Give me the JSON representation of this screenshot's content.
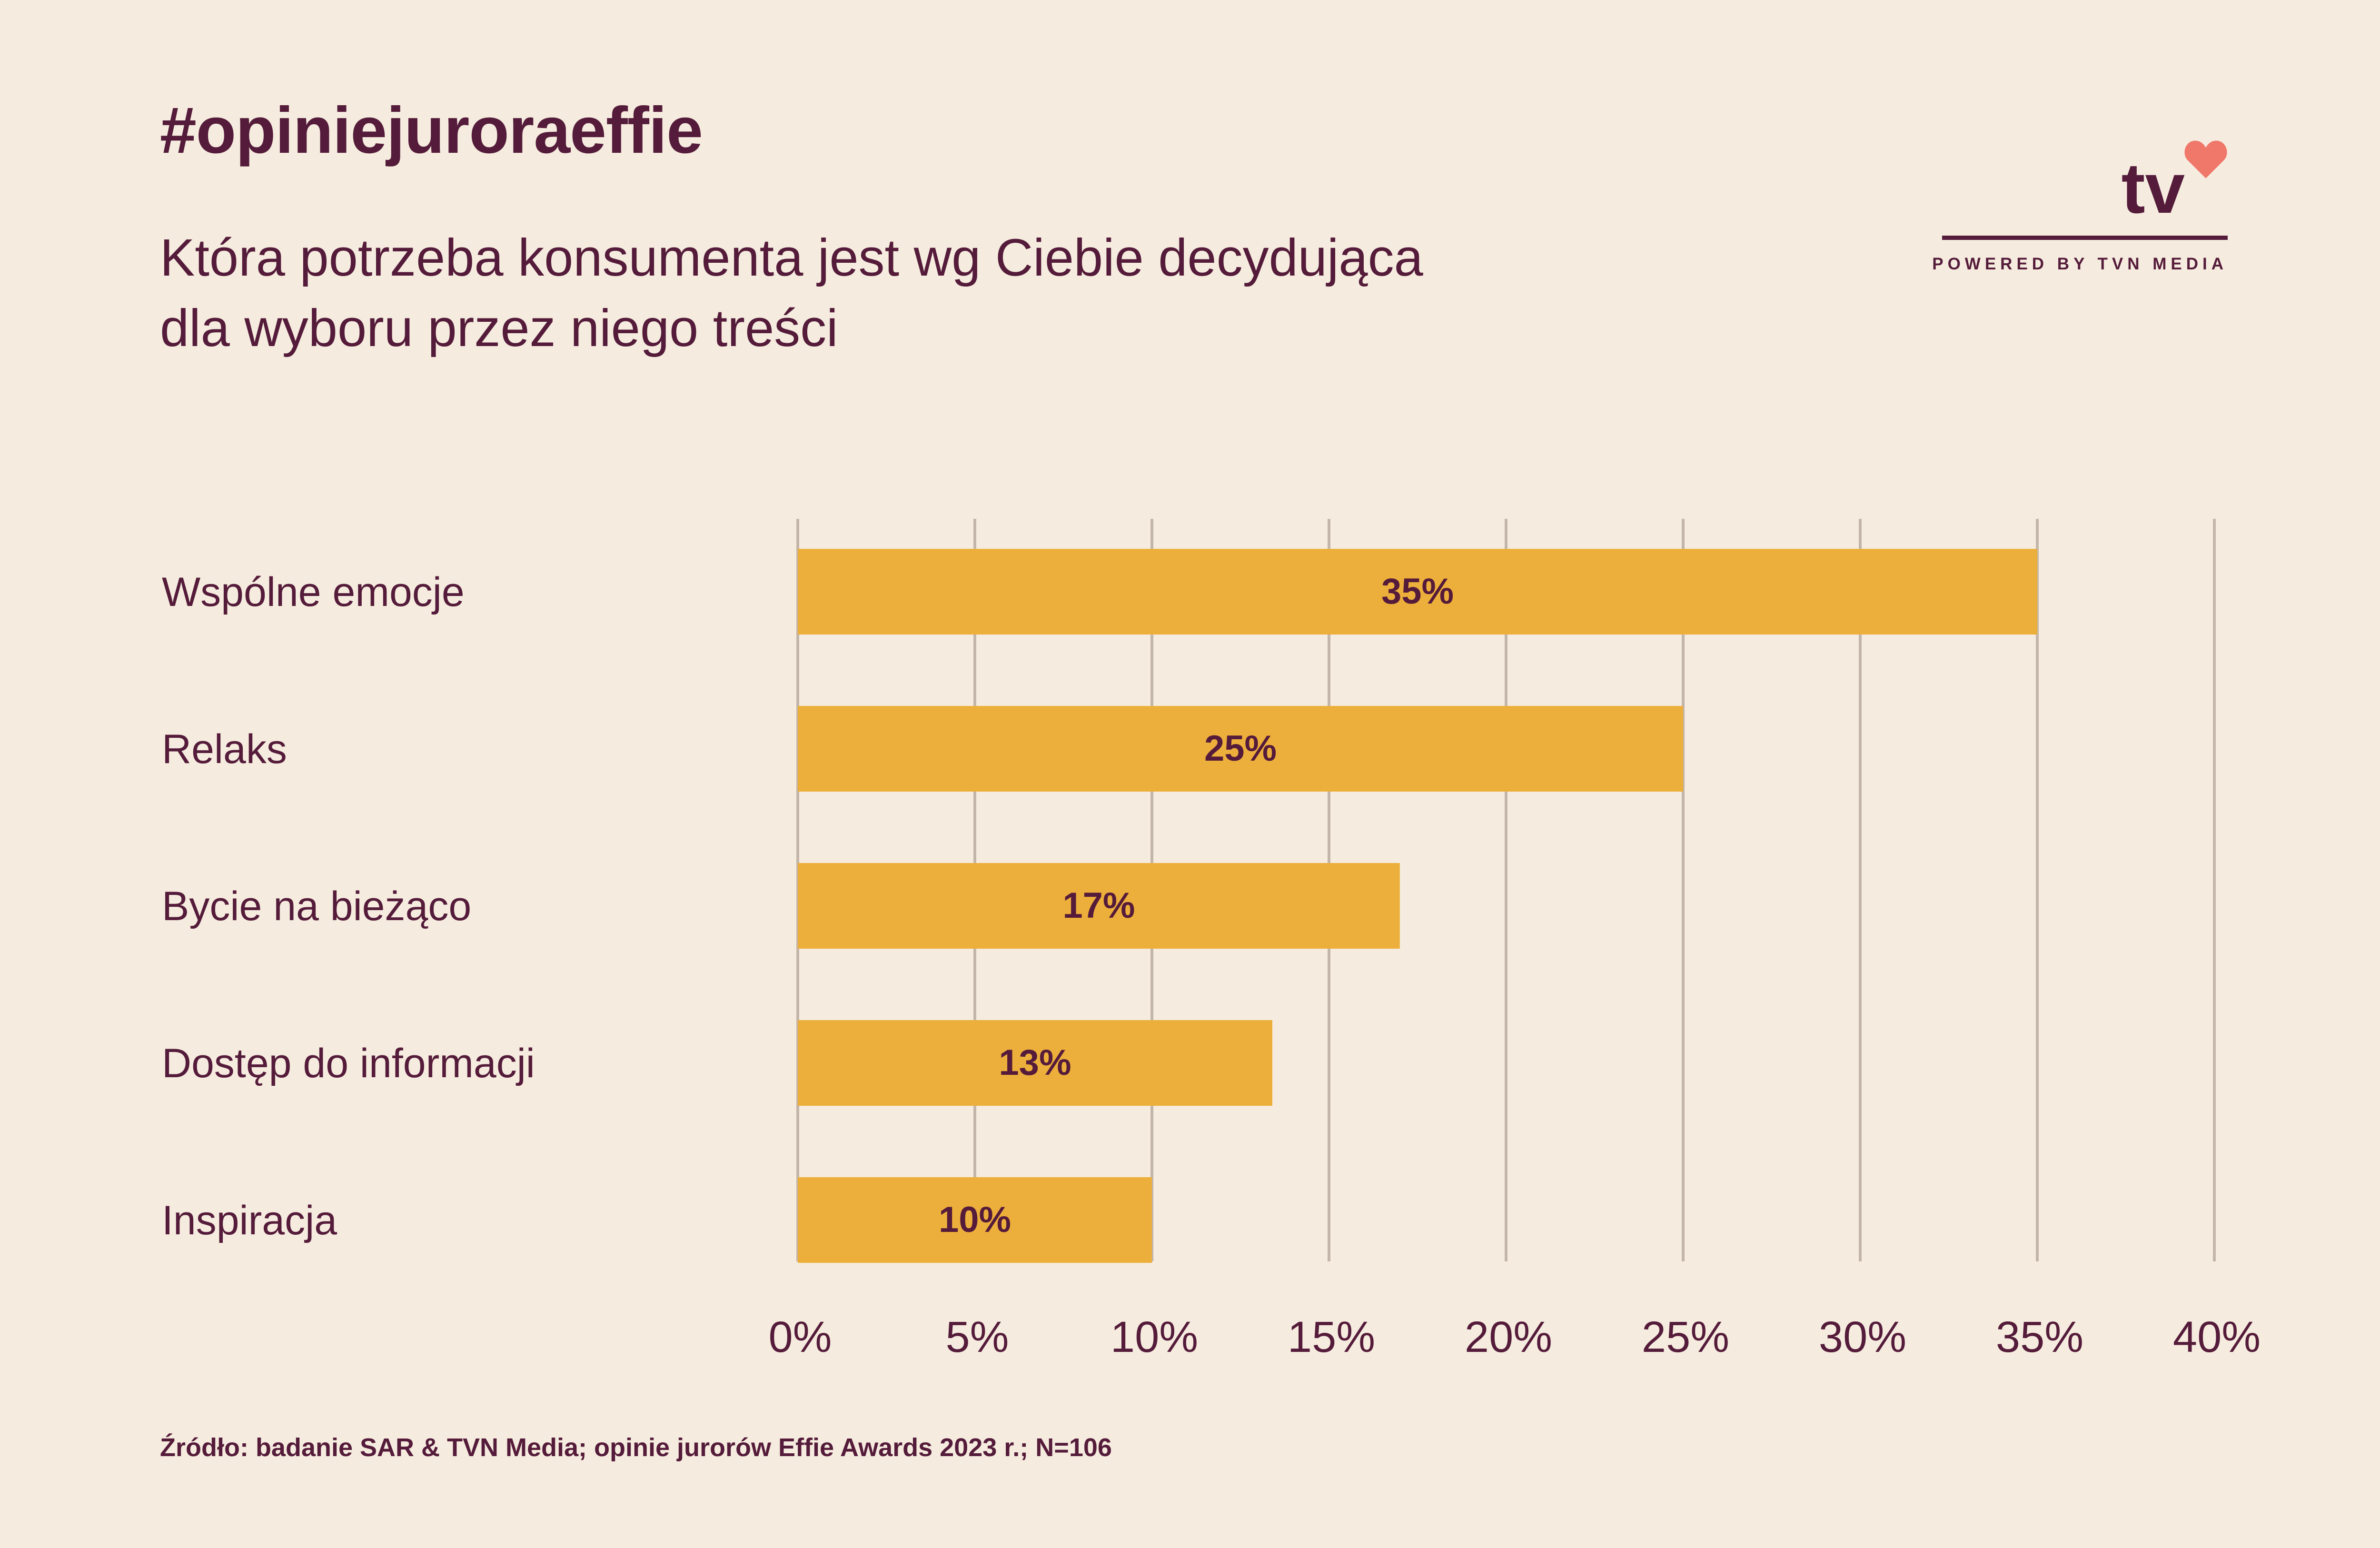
{
  "header": {
    "hashtag": "#opiniejuroraeffie",
    "subtitle_line1": "Która potrzeba konsumenta jest wg Ciebie decydująca",
    "subtitle_line2": "dla wyboru przez niego treści"
  },
  "logo": {
    "mark": "tv",
    "icon": "heart-icon",
    "caption": "POWERED BY TVN MEDIA"
  },
  "colors": {
    "background": "#f5ecdf",
    "text": "#551b3a",
    "bar": "#edaf3b",
    "grid": "#c3b5a9",
    "heart": "#f0786a"
  },
  "chart_data": {
    "type": "bar",
    "orientation": "horizontal",
    "categories": [
      "Wspólne emocje",
      "Relaks",
      "Bycie na bieżąco",
      "Dostęp do informacji",
      "Inspiracja"
    ],
    "values": [
      35,
      25,
      17,
      13.4,
      10
    ],
    "value_labels": [
      "35%",
      "25%",
      "17%",
      "13%",
      "10%"
    ],
    "xlim": [
      0,
      40
    ],
    "xticks": [
      0,
      5,
      10,
      15,
      20,
      25,
      30,
      35,
      40
    ],
    "xtick_labels": [
      "0%",
      "5%",
      "10%",
      "15%",
      "20%",
      "25%",
      "30%",
      "35%",
      "40%"
    ],
    "grid": true
  },
  "footer": {
    "source": "Źródło: badanie SAR & TVN Media; opinie jurorów Effie Awards 2023 r.; N=106"
  }
}
